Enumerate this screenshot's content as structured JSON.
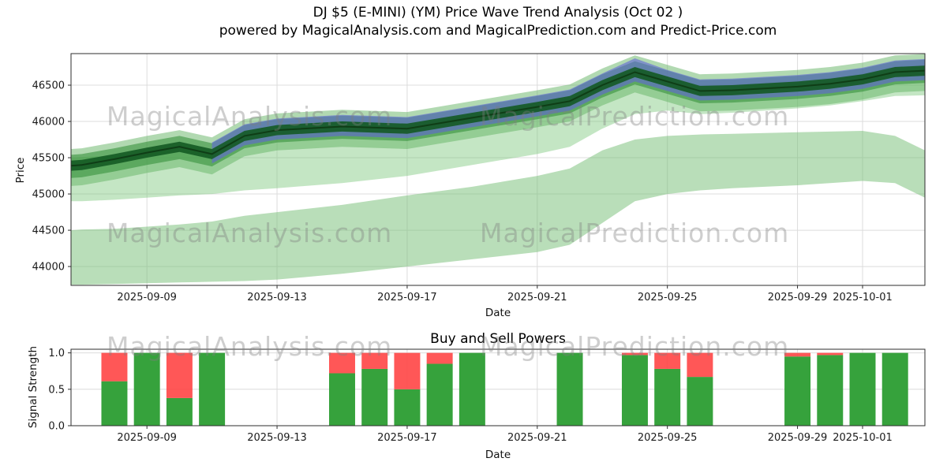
{
  "title": "DJ $5 (E-MINI) (YM) Price Wave Trend Analysis (Oct 02 )",
  "subtitle": "powered by MagicalAnalysis.com and MagicalPrediction.com and Predict-Price.com",
  "watermarks": {
    "left": "MagicalAnalysis.com",
    "right": "MagicalPrediction.com"
  },
  "chart_data": [
    {
      "type": "area",
      "title": "",
      "xlabel": "Date",
      "ylabel": "Price",
      "ylim": [
        43740,
        46935
      ],
      "x_range": [
        "2025-09-06T16:00:00",
        "2025-10-02T22:00:00"
      ],
      "x_ticks": [
        "2025-09-09",
        "2025-09-13",
        "2025-09-17",
        "2025-09-21",
        "2025-09-25",
        "2025-09-29",
        "2025-10-01"
      ],
      "y_ticks": [
        {
          "v": 44000,
          "label": "44000"
        },
        {
          "v": 44500,
          "label": "44500"
        },
        {
          "v": 45000,
          "label": "45000"
        },
        {
          "v": 45500,
          "label": "45500"
        },
        {
          "v": 46000,
          "label": "46000"
        },
        {
          "v": 46500,
          "label": "46500"
        }
      ],
      "x_dates": [
        "2025-09-06T16:00:00",
        "2025-09-07",
        "2025-09-08",
        "2025-09-09",
        "2025-09-10",
        "2025-09-11",
        "2025-09-12",
        "2025-09-13",
        "2025-09-15",
        "2025-09-17",
        "2025-09-19",
        "2025-09-21",
        "2025-09-22",
        "2025-09-23",
        "2025-09-24",
        "2025-09-25",
        "2025-09-26",
        "2025-09-27",
        "2025-09-29",
        "2025-09-30",
        "2025-10-01",
        "2025-10-02",
        "2025-10-02T22:00:00"
      ],
      "bands": [
        {
          "name": "outer-lower-band",
          "color": "rgba(115,190,115,0.50)",
          "lower": [
            43750,
            43750,
            43760,
            43770,
            43780,
            43790,
            43800,
            43820,
            43900,
            44000,
            44100,
            44200,
            44300,
            44600,
            44900,
            45000,
            45050,
            45080,
            45120,
            45150,
            45180,
            45150,
            44950
          ],
          "upper": [
            44500,
            44510,
            44520,
            44550,
            44580,
            44620,
            44700,
            44750,
            44850,
            44980,
            45100,
            45250,
            45350,
            45600,
            45750,
            45800,
            45820,
            45830,
            45850,
            45860,
            45870,
            45800,
            45600
          ]
        },
        {
          "name": "mid-fan-band",
          "color": "rgba(125,200,125,0.45)",
          "lower": [
            44900,
            44900,
            44920,
            44950,
            44980,
            45000,
            45050,
            45080,
            45150,
            45250,
            45400,
            45550,
            45650,
            45900,
            46100,
            46150,
            46100,
            46120,
            46180,
            46220,
            46280,
            46350,
            46360
          ],
          "upper": [
            45500,
            45510,
            45530,
            45560,
            45600,
            45580,
            45750,
            45820,
            45900,
            45950,
            46100,
            46250,
            46330,
            46550,
            46740,
            46620,
            46500,
            46510,
            46560,
            46600,
            46660,
            46760,
            46780
          ]
        },
        {
          "name": "upper-light-band",
          "color": "rgba(100,180,100,0.50)",
          "lower": [
            45110,
            45120,
            45200,
            45290,
            45370,
            45270,
            45520,
            45600,
            45650,
            45620,
            45770,
            45920,
            46000,
            46220,
            46400,
            46270,
            46140,
            46150,
            46200,
            46240,
            46300,
            46400,
            46420
          ],
          "upper": [
            45620,
            45630,
            45710,
            45800,
            45880,
            45780,
            46030,
            46110,
            46160,
            46130,
            46280,
            46430,
            46510,
            46730,
            46910,
            46780,
            46650,
            46660,
            46710,
            46750,
            46810,
            46910,
            46930
          ]
        },
        {
          "name": "mid-green-band",
          "color": "rgba(55,145,60,0.60)",
          "lower": [
            45220,
            45230,
            45310,
            45400,
            45480,
            45380,
            45630,
            45710,
            45760,
            45730,
            45880,
            46030,
            46110,
            46330,
            46510,
            46380,
            46250,
            46260,
            46310,
            46350,
            46410,
            46510,
            46530
          ],
          "upper": [
            45540,
            45550,
            45630,
            45720,
            45800,
            45700,
            45950,
            46030,
            46080,
            46050,
            46200,
            46350,
            46430,
            46650,
            46830,
            46700,
            46570,
            46580,
            46630,
            46670,
            46730,
            46830,
            46850
          ]
        },
        {
          "name": "blue-band",
          "color": "rgba(95,100,215,0.60)",
          "lower": [
            null,
            null,
            null,
            null,
            null,
            45420,
            45670,
            45750,
            45800,
            45770,
            45920,
            46070,
            46150,
            46370,
            46550,
            46420,
            46290,
            46300,
            46350,
            46390,
            46450,
            46550,
            46570
          ],
          "upper": [
            null,
            null,
            null,
            null,
            null,
            45710,
            45960,
            46040,
            46090,
            46060,
            46210,
            46360,
            46440,
            46660,
            46870,
            46710,
            46580,
            46590,
            46640,
            46680,
            46740,
            46840,
            46860
          ]
        },
        {
          "name": "inner-dark-band",
          "color": "rgba(20,90,35,0.90)",
          "lower": [
            45320,
            45330,
            45410,
            45500,
            45580,
            45480,
            45730,
            45810,
            45860,
            45830,
            45980,
            46130,
            46210,
            46430,
            46610,
            46480,
            46350,
            46360,
            46410,
            46450,
            46510,
            46610,
            46630
          ],
          "upper": [
            45460,
            45470,
            45550,
            45640,
            45720,
            45620,
            45870,
            45950,
            46000,
            45970,
            46120,
            46270,
            46350,
            46570,
            46750,
            46620,
            46490,
            46500,
            46550,
            46590,
            46650,
            46750,
            46770
          ]
        }
      ],
      "line": {
        "name": "trend-line",
        "color": "#0f3d16",
        "width": 2,
        "values": [
          45390,
          45400,
          45480,
          45570,
          45650,
          45550,
          45800,
          45880,
          45930,
          45900,
          46050,
          46200,
          46280,
          46500,
          46680,
          46550,
          46420,
          46430,
          46480,
          46520,
          46580,
          46680,
          46700
        ]
      }
    },
    {
      "type": "bar",
      "title": "Buy and Sell Powers",
      "xlabel": "Date",
      "ylabel": "Signal Strength",
      "ylim": [
        0,
        1.05
      ],
      "x_range": [
        "2025-09-06T16:00:00",
        "2025-10-02T22:00:00"
      ],
      "x_ticks": [
        "2025-09-09",
        "2025-09-13",
        "2025-09-17",
        "2025-09-21",
        "2025-09-25",
        "2025-09-29",
        "2025-10-01"
      ],
      "y_ticks": [
        {
          "v": 0,
          "label": "0.0"
        },
        {
          "v": 0.5,
          "label": "0.5"
        },
        {
          "v": 1,
          "label": "1.0"
        }
      ],
      "bar_width_days": 0.8,
      "colors": {
        "buy": "#36a23c",
        "sell": "#ff4545"
      },
      "bars": [
        {
          "date": "2025-09-08",
          "buy": 0.61,
          "sell": 0.39
        },
        {
          "date": "2025-09-09",
          "buy": 1.0,
          "sell": 0.0
        },
        {
          "date": "2025-09-10",
          "buy": 0.38,
          "sell": 0.62
        },
        {
          "date": "2025-09-11",
          "buy": 1.0,
          "sell": 0.0
        },
        {
          "date": "2025-09-15",
          "buy": 0.72,
          "sell": 0.28
        },
        {
          "date": "2025-09-16",
          "buy": 0.78,
          "sell": 0.22
        },
        {
          "date": "2025-09-17",
          "buy": 0.5,
          "sell": 0.5
        },
        {
          "date": "2025-09-18",
          "buy": 0.85,
          "sell": 0.15
        },
        {
          "date": "2025-09-19",
          "buy": 1.0,
          "sell": 0.0
        },
        {
          "date": "2025-09-22",
          "buy": 1.0,
          "sell": 0.0
        },
        {
          "date": "2025-09-24",
          "buy": 0.97,
          "sell": 0.03
        },
        {
          "date": "2025-09-25",
          "buy": 0.78,
          "sell": 0.22
        },
        {
          "date": "2025-09-26",
          "buy": 0.67,
          "sell": 0.33
        },
        {
          "date": "2025-09-29",
          "buy": 0.95,
          "sell": 0.05
        },
        {
          "date": "2025-09-30",
          "buy": 0.97,
          "sell": 0.03
        },
        {
          "date": "2025-10-01",
          "buy": 1.0,
          "sell": 0.0
        },
        {
          "date": "2025-10-02",
          "buy": 1.0,
          "sell": 0.0
        }
      ]
    }
  ]
}
